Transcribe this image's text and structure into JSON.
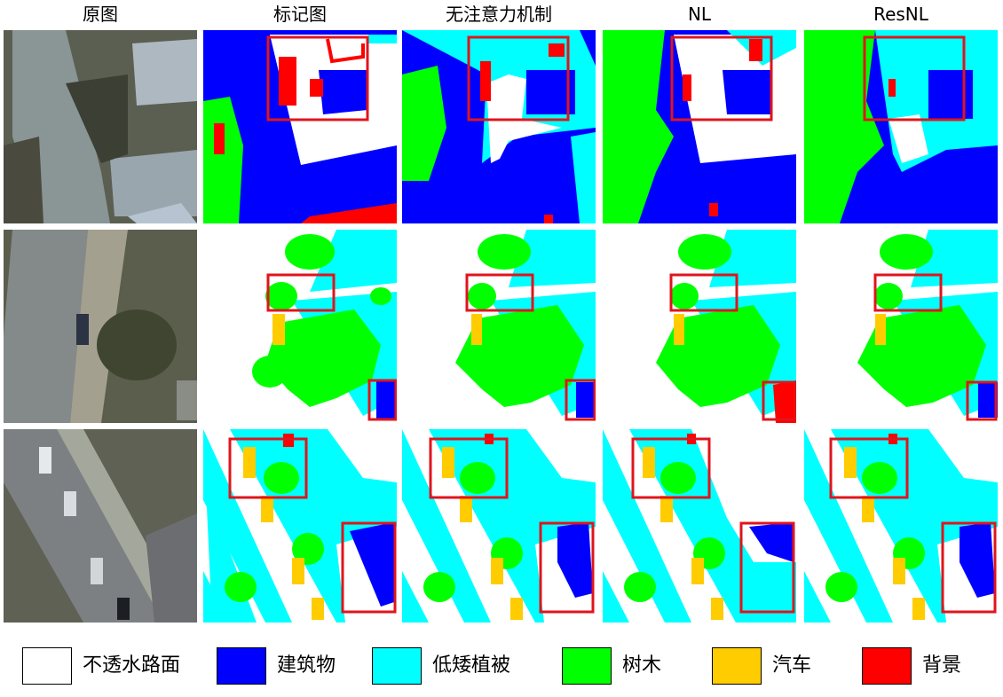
{
  "columns": [
    "原图",
    "标记图",
    "无注意力机制",
    "NL",
    "ResNL"
  ],
  "legend": [
    {
      "label": "不透水路面",
      "color": "#ffffff"
    },
    {
      "label": "建筑物",
      "color": "#0000ff"
    },
    {
      "label": "低矮植被",
      "color": "#00ffff"
    },
    {
      "label": "树木",
      "color": "#00ff00"
    },
    {
      "label": "汽车",
      "color": "#ffcc00"
    },
    {
      "label": "背景",
      "color": "#ff0000"
    }
  ],
  "highlight_color": "#e0141c"
}
